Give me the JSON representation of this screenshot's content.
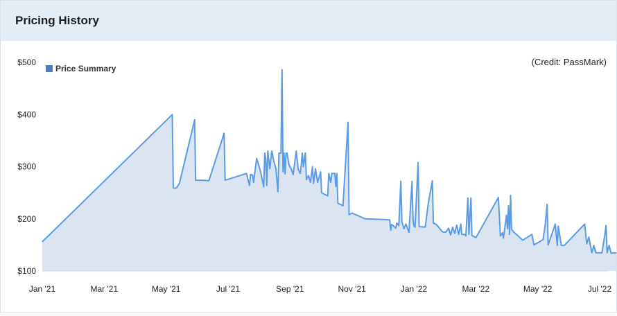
{
  "header": {
    "title": "Pricing History"
  },
  "colors": {
    "line": "#5a9be6",
    "area": "#dbe5f2",
    "legend": "#4f7fbf",
    "header_bg": "#e3edf5"
  },
  "credit": "(Credit: PassMark)",
  "chart_data": {
    "type": "area",
    "title": "",
    "xlabel": "",
    "ylabel": "",
    "ylim": [
      100,
      500
    ],
    "y_ticks": [
      "$100",
      "$200",
      "$300",
      "$400",
      "$500"
    ],
    "x_ticks": [
      "Jan '21",
      "Mar '21",
      "May '21",
      "Jul '21",
      "Sep '21",
      "Nov '21",
      "Jan '22",
      "Mar '22",
      "May '22",
      "Jul '22"
    ],
    "xlim": [
      "2021-01-01",
      "2022-07-01"
    ],
    "legend": "top-left",
    "grid": false,
    "series": [
      {
        "name": "Price Summary",
        "points": [
          [
            "2021-01-01",
            156
          ],
          [
            "2021-05-09",
            400
          ],
          [
            "2021-05-10",
            259
          ],
          [
            "2021-05-13",
            259
          ],
          [
            "2021-05-16",
            268
          ],
          [
            "2021-05-31",
            390
          ],
          [
            "2021-06-01",
            274
          ],
          [
            "2021-06-08",
            274
          ],
          [
            "2021-06-14",
            273
          ],
          [
            "2021-06-29",
            364
          ],
          [
            "2021-06-30",
            274
          ],
          [
            "2021-07-21",
            287
          ],
          [
            "2021-07-24",
            264
          ],
          [
            "2021-07-25",
            285
          ],
          [
            "2021-07-27",
            284
          ],
          [
            "2021-07-28",
            270
          ],
          [
            "2021-07-31",
            316
          ],
          [
            "2021-08-04",
            290
          ],
          [
            "2021-08-07",
            261
          ],
          [
            "2021-08-08",
            326
          ],
          [
            "2021-08-09",
            316
          ],
          [
            "2021-08-10",
            264
          ],
          [
            "2021-08-11",
            330
          ],
          [
            "2021-08-13",
            296
          ],
          [
            "2021-08-15",
            330
          ],
          [
            "2021-08-17",
            310
          ],
          [
            "2021-08-19",
            297
          ],
          [
            "2021-08-21",
            252
          ],
          [
            "2021-08-22",
            326
          ],
          [
            "2021-08-24",
            326
          ],
          [
            "2021-08-25",
            486
          ],
          [
            "2021-08-26",
            290
          ],
          [
            "2021-08-27",
            326
          ],
          [
            "2021-08-28",
            286
          ],
          [
            "2021-08-29",
            326
          ],
          [
            "2021-08-30",
            326
          ],
          [
            "2021-09-01",
            303
          ],
          [
            "2021-09-03",
            296
          ],
          [
            "2021-09-05",
            285
          ],
          [
            "2021-09-08",
            330
          ],
          [
            "2021-09-10",
            295
          ],
          [
            "2021-09-12",
            287
          ],
          [
            "2021-09-14",
            326
          ],
          [
            "2021-09-15",
            300
          ],
          [
            "2021-09-17",
            326
          ],
          [
            "2021-09-18",
            275
          ],
          [
            "2021-09-20",
            283
          ],
          [
            "2021-09-22",
            270
          ],
          [
            "2021-09-24",
            300
          ],
          [
            "2021-09-25",
            268
          ],
          [
            "2021-09-27",
            296
          ],
          [
            "2021-09-29",
            270
          ],
          [
            "2021-10-02",
            290
          ],
          [
            "2021-10-03",
            250
          ],
          [
            "2021-10-09",
            244
          ],
          [
            "2021-10-10",
            287
          ],
          [
            "2021-10-12",
            270
          ],
          [
            "2021-10-13",
            287
          ],
          [
            "2021-10-16",
            287
          ],
          [
            "2021-10-17",
            262
          ],
          [
            "2021-10-18",
            287
          ],
          [
            "2021-10-19",
            230
          ],
          [
            "2021-10-24",
            225
          ],
          [
            "2021-10-29",
            385
          ],
          [
            "2021-10-30",
            208
          ],
          [
            "2021-11-02",
            211
          ],
          [
            "2021-11-15",
            200
          ],
          [
            "2021-11-28",
            199
          ],
          [
            "2021-12-09",
            198
          ],
          [
            "2021-12-10",
            178
          ],
          [
            "2021-12-11",
            189
          ],
          [
            "2021-12-13",
            186
          ],
          [
            "2021-12-15",
            182
          ],
          [
            "2021-12-16",
            192
          ],
          [
            "2021-12-18",
            187
          ],
          [
            "2021-12-20",
            272
          ],
          [
            "2021-12-21",
            195
          ],
          [
            "2021-12-23",
            181
          ],
          [
            "2021-12-25",
            190
          ],
          [
            "2021-12-28",
            174
          ],
          [
            "2021-12-31",
            272
          ],
          [
            "2022-01-01",
            198
          ],
          [
            "2022-01-02",
            186
          ],
          [
            "2022-01-03",
            184
          ],
          [
            "2022-01-06",
            308
          ],
          [
            "2022-01-07",
            185
          ],
          [
            "2022-01-13",
            184
          ],
          [
            "2022-01-16",
            230
          ],
          [
            "2022-01-20",
            273
          ],
          [
            "2022-01-21",
            192
          ],
          [
            "2022-01-24",
            189
          ],
          [
            "2022-01-27",
            182
          ],
          [
            "2022-01-30",
            175
          ],
          [
            "2022-02-02",
            174
          ],
          [
            "2022-02-05",
            182
          ],
          [
            "2022-02-07",
            169
          ],
          [
            "2022-02-09",
            184
          ],
          [
            "2022-02-11",
            172
          ],
          [
            "2022-02-13",
            188
          ],
          [
            "2022-02-15",
            170
          ],
          [
            "2022-02-17",
            190
          ],
          [
            "2022-02-18",
            170
          ],
          [
            "2022-02-21",
            170
          ],
          [
            "2022-02-22",
            167
          ],
          [
            "2022-02-24",
            240
          ],
          [
            "2022-02-25",
            170
          ],
          [
            "2022-02-27",
            240
          ],
          [
            "2022-02-28",
            168
          ],
          [
            "2022-03-04",
            164
          ],
          [
            "2022-03-26",
            241
          ],
          [
            "2022-03-28",
            167
          ],
          [
            "2022-03-30",
            173
          ],
          [
            "2022-03-31",
            163
          ],
          [
            "2022-04-03",
            207
          ],
          [
            "2022-04-04",
            181
          ],
          [
            "2022-04-05",
            225
          ],
          [
            "2022-04-06",
            170
          ],
          [
            "2022-04-07",
            245
          ],
          [
            "2022-04-08",
            180
          ],
          [
            "2022-04-10",
            175
          ],
          [
            "2022-04-19",
            159
          ],
          [
            "2022-04-28",
            170
          ],
          [
            "2022-04-30",
            150
          ],
          [
            "2022-05-09",
            160
          ],
          [
            "2022-05-11",
            187
          ],
          [
            "2022-05-13",
            228
          ],
          [
            "2022-05-14",
            150
          ],
          [
            "2022-05-21",
            190
          ],
          [
            "2022-05-23",
            149
          ],
          [
            "2022-05-24",
            186
          ],
          [
            "2022-05-27",
            149
          ],
          [
            "2022-05-30",
            149
          ],
          [
            "2022-06-19",
            190
          ],
          [
            "2022-06-21",
            152
          ],
          [
            "2022-06-23",
            165
          ],
          [
            "2022-06-26",
            135
          ],
          [
            "2022-06-28",
            149
          ],
          [
            "2022-06-30",
            135
          ],
          [
            "2022-07-06",
            135
          ],
          [
            "2022-07-09",
            172
          ],
          [
            "2022-07-10",
            187
          ],
          [
            "2022-07-11",
            135
          ],
          [
            "2022-07-13",
            149
          ],
          [
            "2022-07-15",
            134
          ],
          [
            "2022-07-18",
            135
          ],
          [
            "2022-07-22",
            134
          ],
          [
            "2022-07-27",
            134
          ],
          [
            "2022-07-28",
            133
          ]
        ]
      }
    ]
  }
}
